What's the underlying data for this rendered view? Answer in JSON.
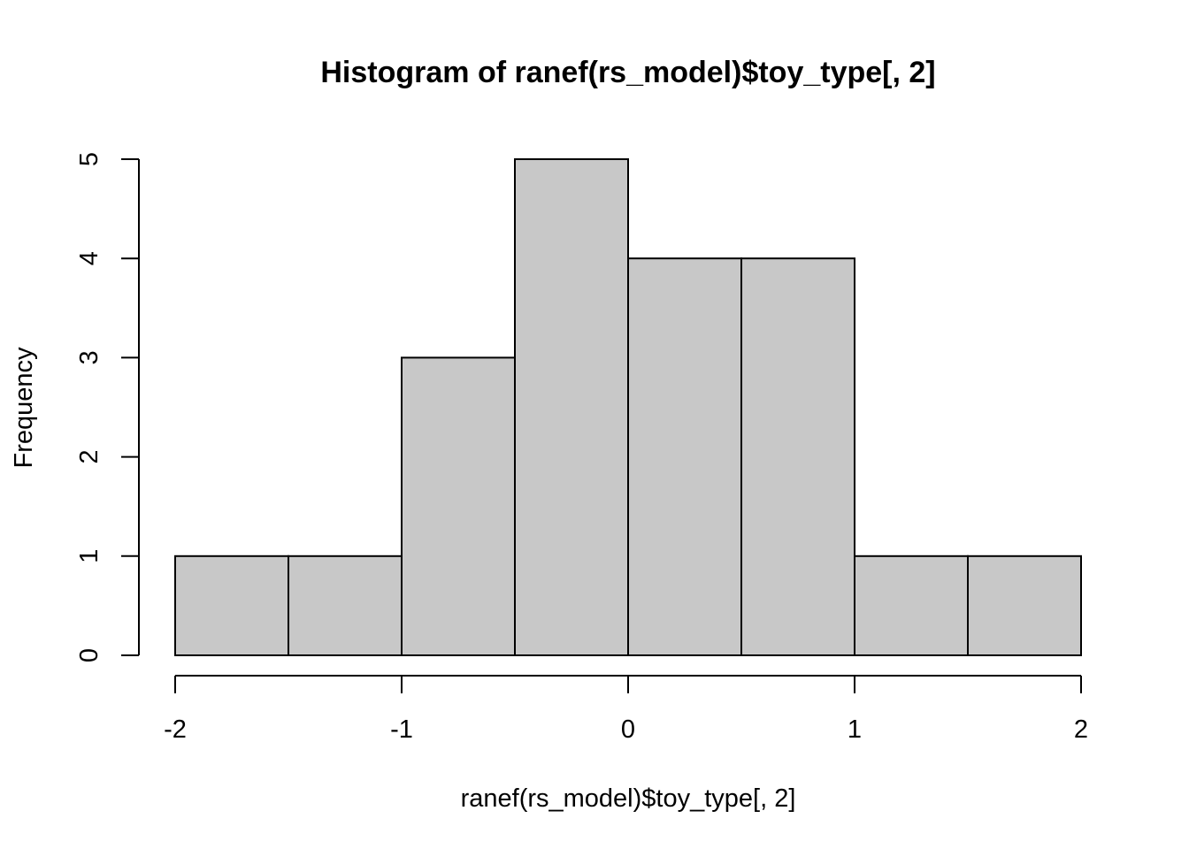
{
  "chart_data": {
    "type": "bar",
    "subtype": "histogram",
    "title": "Histogram of ranef(rs_model)$toy_type[, 2]",
    "xlabel": "ranef(rs_model)$toy_type[, 2]",
    "ylabel": "Frequency",
    "bins": [
      {
        "start": -2.0,
        "end": -1.5,
        "count": 1
      },
      {
        "start": -1.5,
        "end": -1.0,
        "count": 1
      },
      {
        "start": -1.0,
        "end": -0.5,
        "count": 3
      },
      {
        "start": -0.5,
        "end": 0.0,
        "count": 5
      },
      {
        "start": 0.0,
        "end": 0.5,
        "count": 4
      },
      {
        "start": 0.5,
        "end": 1.0,
        "count": 4
      },
      {
        "start": 1.0,
        "end": 1.5,
        "count": 1
      },
      {
        "start": 1.5,
        "end": 2.0,
        "count": 1
      }
    ],
    "xlim": [
      -2,
      2
    ],
    "ylim": [
      0,
      5
    ],
    "x_ticks": [
      -2,
      -1,
      0,
      1,
      2
    ],
    "x_tick_labels": [
      "-2",
      "-1",
      "0",
      "1",
      "2"
    ],
    "y_ticks": [
      0,
      1,
      2,
      3,
      4,
      5
    ],
    "y_tick_labels": [
      "0",
      "1",
      "2",
      "3",
      "4",
      "5"
    ],
    "bar_fill": "#c8c8c8",
    "bar_stroke": "#000000",
    "grid": false
  }
}
